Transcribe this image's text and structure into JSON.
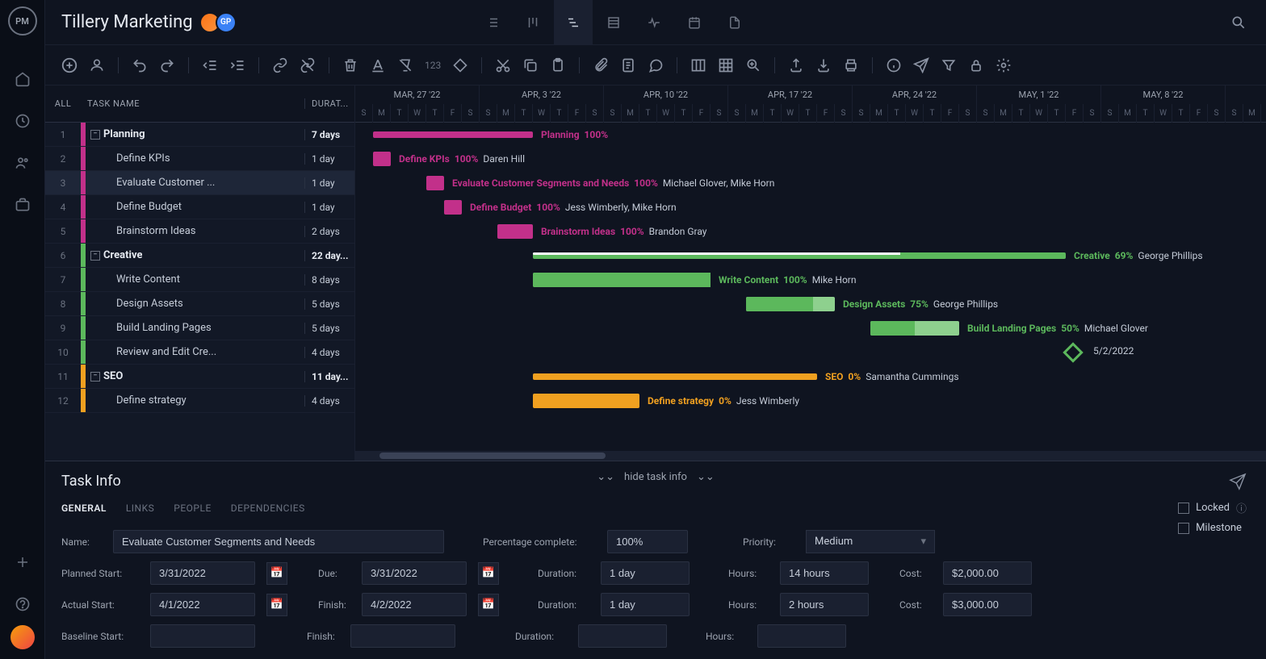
{
  "project_title": "Tillery Marketing",
  "avatars": [
    {
      "initials": "",
      "color": "linear-gradient(135deg,#f97316,#fb923c)"
    },
    {
      "initials": "GP",
      "color": "#3b82f6"
    }
  ],
  "grid_headers": {
    "all": "ALL",
    "name": "TASK NAME",
    "duration": "DURAT..."
  },
  "gantt_day_width": 22,
  "gantt_start_offset_days": 0,
  "months": [
    {
      "label": "MAR, 27 '22",
      "start": 0,
      "span": 7
    },
    {
      "label": "APR, 3 '22",
      "start": 7,
      "span": 7
    },
    {
      "label": "APR, 10 '22",
      "start": 14,
      "span": 7
    },
    {
      "label": "APR, 17 '22",
      "start": 21,
      "span": 7
    },
    {
      "label": "APR, 24 '22",
      "start": 28,
      "span": 7
    },
    {
      "label": "MAY, 1 '22",
      "start": 35,
      "span": 7
    },
    {
      "label": "MAY, 8 '22",
      "start": 42,
      "span": 7
    }
  ],
  "day_letters": [
    "S",
    "M",
    "T",
    "W",
    "T",
    "F",
    "S"
  ],
  "colors": {
    "planning": "#c2308a",
    "planning_summary_bar": "#c94aa0",
    "creative": "#5cb85c",
    "creative_light": "#8ed08e",
    "seo": "#f0a020"
  },
  "tasks": [
    {
      "num": 1,
      "name": "Planning",
      "duration": "7 days",
      "bold": true,
      "color": "#c2308a",
      "collapse": true,
      "indent": 0,
      "bar": {
        "type": "summary",
        "start": 1,
        "span": 9,
        "label": "Planning",
        "pct": "100%",
        "color": "#c2308a"
      }
    },
    {
      "num": 2,
      "name": "Define KPIs",
      "duration": "1 day",
      "color": "#c2308a",
      "indent": 2,
      "bar": {
        "start": 1,
        "span": 1,
        "label": "Define KPIs",
        "pct": "100%",
        "assignee": "Daren Hill",
        "color": "#c2308a"
      }
    },
    {
      "num": 3,
      "name": "Evaluate Customer ...",
      "duration": "1 day",
      "color": "#c2308a",
      "indent": 2,
      "selected": true,
      "bar": {
        "start": 4,
        "span": 1,
        "label": "Evaluate Customer Segments and Needs",
        "pct": "100%",
        "assignee": "Michael Glover, Mike Horn",
        "color": "#c2308a"
      }
    },
    {
      "num": 4,
      "name": "Define Budget",
      "duration": "1 day",
      "color": "#c2308a",
      "indent": 2,
      "bar": {
        "start": 5,
        "span": 1,
        "label": "Define Budget",
        "pct": "100%",
        "assignee": "Jess Wimberly, Mike Horn",
        "color": "#c2308a"
      }
    },
    {
      "num": 5,
      "name": "Brainstorm Ideas",
      "duration": "2 days",
      "color": "#c2308a",
      "indent": 2,
      "bar": {
        "start": 8,
        "span": 2,
        "label": "Brainstorm Ideas",
        "pct": "100%",
        "assignee": "Brandon Gray",
        "color": "#c2308a"
      }
    },
    {
      "num": 6,
      "name": "Creative",
      "duration": "22 day...",
      "bold": true,
      "color": "#5cb85c",
      "collapse": true,
      "indent": 0,
      "bar": {
        "type": "summary",
        "start": 10,
        "span": 30,
        "label": "Creative",
        "pct": "69%",
        "assignee": "George Phillips",
        "color": "#5cb85c",
        "progress": 0.69
      }
    },
    {
      "num": 7,
      "name": "Write Content",
      "duration": "8 days",
      "color": "#5cb85c",
      "indent": 2,
      "bar": {
        "start": 10,
        "span": 10,
        "label": "Write Content",
        "pct": "100%",
        "assignee": "Mike Horn",
        "color": "#5cb85c",
        "progress": 1
      }
    },
    {
      "num": 8,
      "name": "Design Assets",
      "duration": "5 days",
      "color": "#5cb85c",
      "indent": 2,
      "bar": {
        "start": 22,
        "span": 5,
        "label": "Design Assets",
        "pct": "75%",
        "assignee": "George Phillips",
        "color": "#5cb85c",
        "progress": 0.75
      }
    },
    {
      "num": 9,
      "name": "Build Landing Pages",
      "duration": "5 days",
      "color": "#5cb85c",
      "indent": 2,
      "bar": {
        "start": 29,
        "span": 5,
        "label": "Build Landing Pages",
        "pct": "50%",
        "assignee": "Michael Glover",
        "color": "#5cb85c",
        "progress": 0.5
      }
    },
    {
      "num": 10,
      "name": "Review and Edit Cre...",
      "duration": "4 days",
      "color": "#5cb85c",
      "indent": 2,
      "milestone": {
        "day": 40,
        "label": "5/2/2022"
      }
    },
    {
      "num": 11,
      "name": "SEO",
      "duration": "11 day...",
      "bold": true,
      "color": "#f0a020",
      "collapse": true,
      "indent": 0,
      "bar": {
        "type": "summary",
        "start": 10,
        "span": 16,
        "label": "SEO",
        "pct": "0%",
        "assignee": "Samantha Cummings",
        "color": "#f0a020"
      }
    },
    {
      "num": 12,
      "name": "Define strategy",
      "duration": "4 days",
      "color": "#f0a020",
      "indent": 2,
      "bar": {
        "start": 10,
        "span": 6,
        "label": "Define strategy",
        "pct": "0%",
        "assignee": "Jess Wimberly",
        "color": "#f0a020"
      }
    }
  ],
  "task_info": {
    "title": "Task Info",
    "hide_label": "hide task info",
    "tabs": [
      "GENERAL",
      "LINKS",
      "PEOPLE",
      "DEPENDENCIES"
    ],
    "active_tab": 0,
    "labels": {
      "name": "Name:",
      "pct": "Percentage complete:",
      "priority": "Priority:",
      "planned_start": "Planned Start:",
      "due": "Due:",
      "duration": "Duration:",
      "hours": "Hours:",
      "cost": "Cost:",
      "actual_start": "Actual Start:",
      "finish": "Finish:",
      "baseline_start": "Baseline Start:",
      "locked": "Locked",
      "milestone": "Milestone"
    },
    "values": {
      "name": "Evaluate Customer Segments and Needs",
      "pct": "100%",
      "priority": "Medium",
      "planned_start": "3/31/2022",
      "due": "3/31/2022",
      "duration1": "1 day",
      "hours1": "14 hours",
      "cost1": "$2,000.00",
      "actual_start": "4/1/2022",
      "finish": "4/2/2022",
      "duration2": "1 day",
      "hours2": "2 hours",
      "cost2": "$3,000.00",
      "baseline_start": "",
      "baseline_finish": "",
      "baseline_duration": "",
      "baseline_hours": ""
    }
  }
}
